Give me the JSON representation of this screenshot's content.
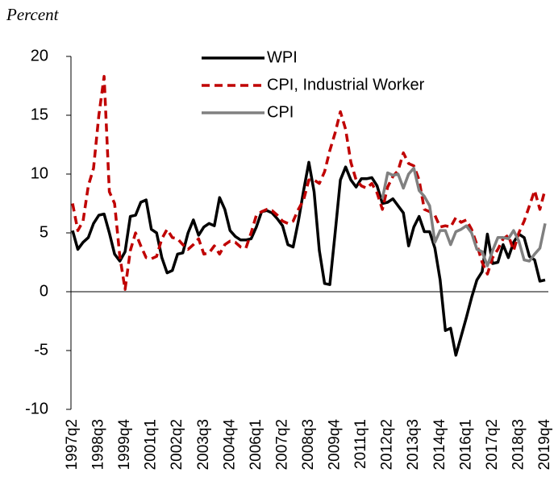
{
  "chart_data": {
    "type": "line",
    "title": "Percent",
    "categories": [
      "1997q2",
      null,
      null,
      null,
      null,
      "1998q3",
      null,
      null,
      null,
      null,
      "1999q4",
      null,
      null,
      null,
      null,
      "2001q1",
      null,
      null,
      null,
      null,
      "2002q2",
      null,
      null,
      null,
      null,
      "2003q3",
      null,
      null,
      null,
      null,
      "2004q4",
      null,
      null,
      null,
      null,
      "2006q1",
      null,
      null,
      null,
      null,
      "2007q2",
      null,
      null,
      null,
      null,
      "2008q3",
      null,
      null,
      null,
      null,
      "2009q4",
      null,
      null,
      null,
      null,
      "2011q1",
      null,
      null,
      null,
      null,
      "2012q2",
      null,
      null,
      null,
      null,
      "2013q3",
      null,
      null,
      null,
      null,
      "2014q4",
      null,
      null,
      null,
      null,
      "2016q1",
      null,
      null,
      null,
      null,
      "2017q2",
      null,
      null,
      null,
      null,
      "2018q3",
      null,
      null,
      null,
      null,
      "2019q4"
    ],
    "series": [
      {
        "name": "WPI",
        "color": "#000000",
        "style": "solid",
        "values": [
          5.2,
          3.6,
          4.2,
          4.6,
          5.8,
          6.5,
          6.6,
          5.0,
          3.2,
          2.6,
          3.4,
          6.4,
          6.5,
          7.6,
          7.8,
          5.3,
          5.0,
          2.9,
          1.6,
          1.8,
          3.2,
          3.3,
          5.0,
          6.1,
          4.8,
          5.5,
          5.8,
          5.6,
          8.0,
          7.0,
          5.2,
          4.7,
          4.4,
          4.4,
          4.5,
          5.5,
          6.8,
          6.9,
          6.7,
          6.2,
          5.6,
          4.0,
          3.8,
          6.0,
          8.6,
          11.0,
          8.5,
          3.5,
          0.7,
          0.6,
          5.0,
          9.5,
          10.6,
          9.5,
          8.9,
          9.6,
          9.6,
          9.7,
          9.0,
          7.5,
          7.6,
          7.9,
          7.3,
          6.7,
          3.9,
          5.5,
          6.4,
          5.1,
          5.1,
          3.7,
          1.0,
          -3.3,
          -3.1,
          -5.4,
          -3.8,
          -2.2,
          -0.5,
          1.0,
          1.7,
          4.9,
          2.4,
          2.5,
          4.0,
          2.9,
          4.2,
          4.9,
          4.6,
          3.0,
          2.7,
          0.9,
          1.0
        ]
      },
      {
        "name": "CPI, Industrial Worker",
        "color": "#c00000",
        "style": "dashed",
        "values": [
          7.5,
          5.2,
          6.0,
          9.0,
          10.5,
          15.0,
          18.3,
          8.5,
          7.5,
          3.0,
          0.2,
          3.5,
          5.0,
          3.9,
          2.9,
          2.8,
          3.0,
          4.5,
          5.3,
          4.6,
          4.5,
          4.0,
          3.6,
          4.0,
          4.5,
          3.2,
          3.3,
          3.9,
          3.2,
          4.0,
          4.3,
          4.2,
          3.8,
          3.7,
          5.0,
          6.5,
          6.8,
          7.0,
          6.9,
          6.5,
          6.0,
          5.8,
          6.0,
          7.0,
          7.8,
          9.5,
          9.5,
          9.2,
          10.2,
          12.0,
          13.5,
          15.3,
          13.8,
          11.0,
          9.5,
          9.0,
          8.8,
          9.2,
          8.4,
          7.0,
          8.9,
          9.8,
          10.3,
          11.8,
          10.9,
          10.7,
          9.5,
          7.0,
          6.8,
          6.5,
          5.5,
          5.6,
          5.5,
          6.3,
          5.9,
          6.1,
          5.3,
          4.0,
          2.5,
          1.5,
          2.9,
          3.6,
          4.5,
          4.8,
          3.5,
          5.0,
          6.0,
          7.3,
          8.6,
          7.0,
          8.7
        ]
      },
      {
        "name": "CPI",
        "color": "#808080",
        "style": "solid",
        "values": [
          null,
          null,
          null,
          null,
          null,
          null,
          null,
          null,
          null,
          null,
          null,
          null,
          null,
          null,
          null,
          null,
          null,
          null,
          null,
          null,
          null,
          null,
          null,
          null,
          null,
          null,
          null,
          null,
          null,
          null,
          null,
          null,
          null,
          null,
          null,
          null,
          null,
          null,
          null,
          null,
          null,
          null,
          null,
          null,
          null,
          null,
          null,
          null,
          null,
          null,
          null,
          null,
          null,
          null,
          null,
          null,
          null,
          null,
          null,
          7.9,
          10.1,
          9.9,
          10.0,
          8.8,
          10.0,
          10.5,
          8.6,
          8.1,
          7.3,
          4.2,
          5.2,
          5.2,
          4.0,
          5.1,
          5.3,
          5.6,
          5.0,
          3.6,
          3.4,
          2.2,
          3.5,
          4.6,
          4.6,
          4.5,
          5.2,
          4.3,
          2.7,
          2.6,
          3.2,
          3.7,
          5.8
        ]
      }
    ],
    "ylim": [
      -10,
      20
    ],
    "yticks": [
      -10,
      -5,
      0,
      5,
      10,
      15,
      20
    ],
    "grid": false,
    "zero_line": true,
    "legend": "top"
  }
}
